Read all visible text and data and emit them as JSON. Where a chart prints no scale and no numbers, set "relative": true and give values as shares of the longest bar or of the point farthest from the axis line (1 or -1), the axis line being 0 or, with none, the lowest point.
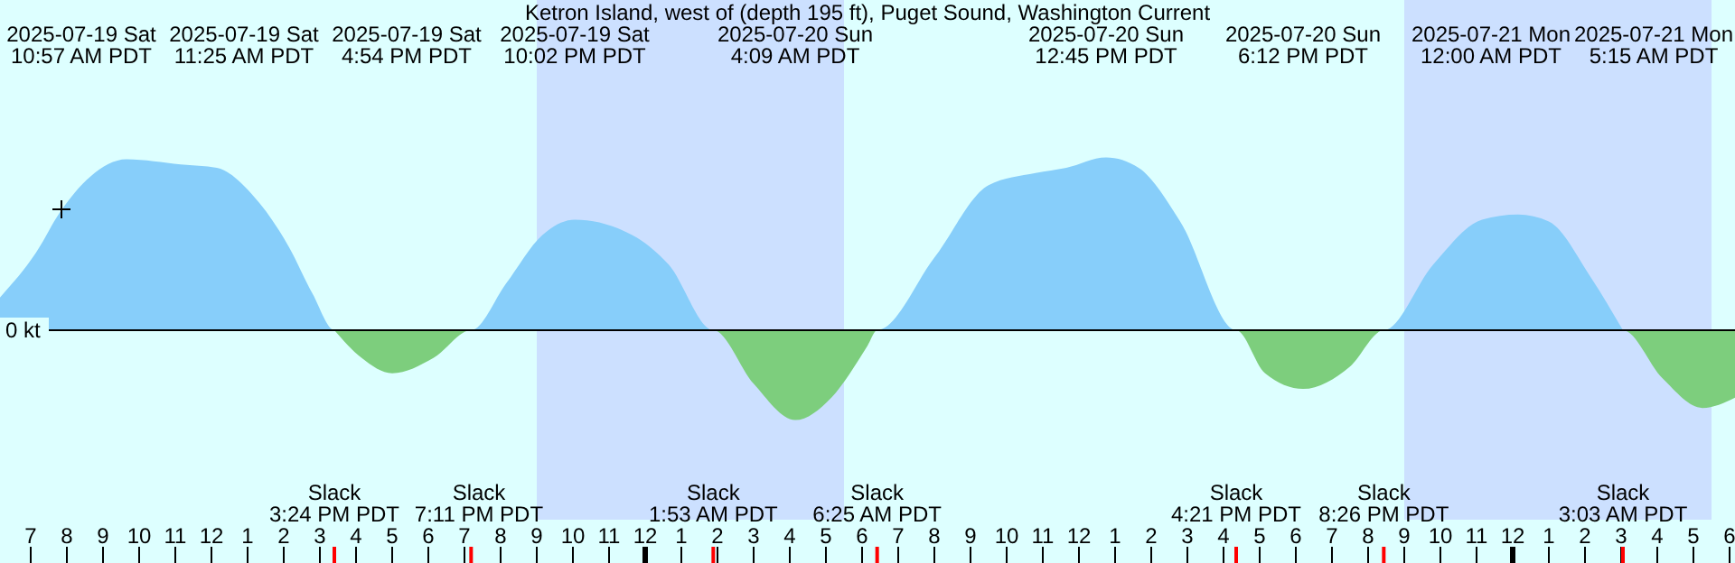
{
  "chart_data": {
    "type": "area",
    "relative": true,
    "title": "Ketron Island, west of (depth 195 ft), Puget Sound, Washington Current",
    "x": [
      "2025-07-19T06:09",
      "2025-07-19T07:09",
      "2025-07-19T07:48",
      "2025-07-19T08:39",
      "2025-07-19T09:39",
      "2025-07-19T11:09",
      "2025-07-19T12:09",
      "2025-07-19T13:09",
      "2025-07-19T14:09",
      "2025-07-19T14:48",
      "2025-07-19T15:24",
      "2025-07-19T16:09",
      "2025-07-19T17:00",
      "2025-07-19T18:09",
      "2025-07-19T19:11",
      "2025-07-19T20:09",
      "2025-07-19T21:09",
      "2025-07-19T22:03",
      "2025-07-19T23:39",
      "2025-07-20T00:39",
      "2025-07-20T01:53",
      "2025-07-20T03:00",
      "2025-07-20T04:09",
      "2025-07-20T05:09",
      "2025-07-20T06:09",
      "2025-07-20T06:25",
      "2025-07-20T08:00",
      "2025-07-20T09:30",
      "2025-07-20T10:48",
      "2025-07-20T11:39",
      "2025-07-20T12:45",
      "2025-07-20T13:39",
      "2025-07-20T14:48",
      "2025-07-20T16:21",
      "2025-07-20T17:09",
      "2025-07-20T18:12",
      "2025-07-20T19:30",
      "2025-07-20T20:26",
      "2025-07-20T21:48",
      "2025-07-20T23:09",
      "2025-07-21T00:09",
      "2025-07-21T01:00",
      "2025-07-21T02:09",
      "2025-07-21T03:03",
      "2025-07-21T04:09",
      "2025-07-21T05:15",
      "2025-07-21T06:09"
    ],
    "series": [
      {
        "color": "#87cefa",
        "values": [
          0.19,
          0.45,
          0.68,
          0.89,
          0.99,
          0.96,
          0.94,
          0.78,
          0.48,
          0.21,
          0,
          null,
          null,
          null,
          0,
          0.27,
          0.55,
          0.64,
          0.55,
          0.38,
          0,
          null,
          null,
          null,
          null,
          0,
          0.42,
          0.84,
          0.91,
          0.94,
          1.0,
          0.94,
          0.63,
          0,
          null,
          null,
          null,
          0,
          0.38,
          0.64,
          0.67,
          0.63,
          0.31,
          0,
          null,
          null,
          null
        ]
      },
      {
        "color": "#7dce7d",
        "values": [
          null,
          null,
          null,
          null,
          null,
          null,
          null,
          null,
          null,
          null,
          0,
          -0.16,
          -0.25,
          -0.16,
          0,
          null,
          null,
          null,
          null,
          null,
          0,
          -0.31,
          -0.52,
          -0.39,
          -0.09,
          0,
          null,
          null,
          null,
          null,
          null,
          null,
          null,
          0,
          -0.25,
          -0.34,
          -0.21,
          0,
          null,
          null,
          null,
          null,
          null,
          0,
          -0.28,
          -0.45,
          -0.39
        ]
      }
    ],
    "xlim": [
      "2025-07-19T06:09",
      "2025-07-21T06:09"
    ],
    "xticks": [
      {
        "value": "2025-07-19T07:00",
        "label": "7"
      },
      {
        "value": "2025-07-19T08:00",
        "label": "8"
      },
      {
        "value": "2025-07-19T09:00",
        "label": "9"
      },
      {
        "value": "2025-07-19T10:00",
        "label": "10"
      },
      {
        "value": "2025-07-19T11:00",
        "label": "11"
      },
      {
        "value": "2025-07-19T12:00",
        "label": "12"
      },
      {
        "value": "2025-07-19T13:00",
        "label": "1"
      },
      {
        "value": "2025-07-19T14:00",
        "label": "2"
      },
      {
        "value": "2025-07-19T15:00",
        "label": "3"
      },
      {
        "value": "2025-07-19T16:00",
        "label": "4"
      },
      {
        "value": "2025-07-19T17:00",
        "label": "5"
      },
      {
        "value": "2025-07-19T18:00",
        "label": "6"
      },
      {
        "value": "2025-07-19T19:00",
        "label": "7"
      },
      {
        "value": "2025-07-19T20:00",
        "label": "8"
      },
      {
        "value": "2025-07-19T21:00",
        "label": "9"
      },
      {
        "value": "2025-07-19T22:00",
        "label": "10"
      },
      {
        "value": "2025-07-19T23:00",
        "label": "11"
      },
      {
        "value": "2025-07-20T00:00",
        "label": "12"
      },
      {
        "value": "2025-07-20T01:00",
        "label": "1"
      },
      {
        "value": "2025-07-20T02:00",
        "label": "2"
      },
      {
        "value": "2025-07-20T03:00",
        "label": "3"
      },
      {
        "value": "2025-07-20T04:00",
        "label": "4"
      },
      {
        "value": "2025-07-20T05:00",
        "label": "5"
      },
      {
        "value": "2025-07-20T06:00",
        "label": "6"
      },
      {
        "value": "2025-07-20T07:00",
        "label": "7"
      },
      {
        "value": "2025-07-20T08:00",
        "label": "8"
      },
      {
        "value": "2025-07-20T09:00",
        "label": "9"
      },
      {
        "value": "2025-07-20T10:00",
        "label": "10"
      },
      {
        "value": "2025-07-20T11:00",
        "label": "11"
      },
      {
        "value": "2025-07-20T12:00",
        "label": "12"
      },
      {
        "value": "2025-07-20T13:00",
        "label": "1"
      },
      {
        "value": "2025-07-20T14:00",
        "label": "2"
      },
      {
        "value": "2025-07-20T15:00",
        "label": "3"
      },
      {
        "value": "2025-07-20T16:00",
        "label": "4"
      },
      {
        "value": "2025-07-20T17:00",
        "label": "5"
      },
      {
        "value": "2025-07-20T18:00",
        "label": "6"
      },
      {
        "value": "2025-07-20T19:00",
        "label": "7"
      },
      {
        "value": "2025-07-20T20:00",
        "label": "8"
      },
      {
        "value": "2025-07-20T21:00",
        "label": "9"
      },
      {
        "value": "2025-07-20T22:00",
        "label": "10"
      },
      {
        "value": "2025-07-20T23:00",
        "label": "11"
      },
      {
        "value": "2025-07-21T00:00",
        "label": "12"
      },
      {
        "value": "2025-07-21T01:00",
        "label": "1"
      },
      {
        "value": "2025-07-21T02:00",
        "label": "2"
      },
      {
        "value": "2025-07-21T03:00",
        "label": "3"
      },
      {
        "value": "2025-07-21T04:00",
        "label": "4"
      },
      {
        "value": "2025-07-21T05:00",
        "label": "5"
      },
      {
        "value": "2025-07-21T06:00",
        "label": "6"
      }
    ],
    "bands": [
      {
        "axis": "x",
        "from": "2025-07-19T21:00",
        "to": "2025-07-20T05:30",
        "color": "#cce0ff"
      },
      {
        "axis": "x",
        "from": "2025-07-20T21:00",
        "to": "2025-07-21T05:30",
        "color": "#cce0ff"
      }
    ],
    "ref_lines": [
      {
        "axis": "y",
        "value": 0,
        "label": "0 kt"
      }
    ],
    "annotations": [
      "2025-07-19 Sat\n10:57 AM PDT",
      "2025-07-19 Sat\n11:25 AM PDT",
      "2025-07-19 Sat\n4:54 PM PDT",
      "2025-07-19 Sat\n10:02 PM PDT",
      "2025-07-20 Sun\n4:09 AM PDT",
      "2025-07-20 Sun\n12:45 PM PDT",
      "2025-07-20 Sun\n6:12 PM PDT",
      "2025-07-21 Mon\n12:00 AM PDT",
      "2025-07-21 Mon\n5:15 AM PDT",
      "Slack\n3:24 PM PDT",
      "Slack\n7:11 PM PDT",
      "Slack\n1:53 AM PDT",
      "Slack\n6:25 AM PDT",
      "Slack\n4:21 PM PDT",
      "Slack\n8:26 PM PDT",
      "Slack\n3:03 AM PDT"
    ]
  }
}
